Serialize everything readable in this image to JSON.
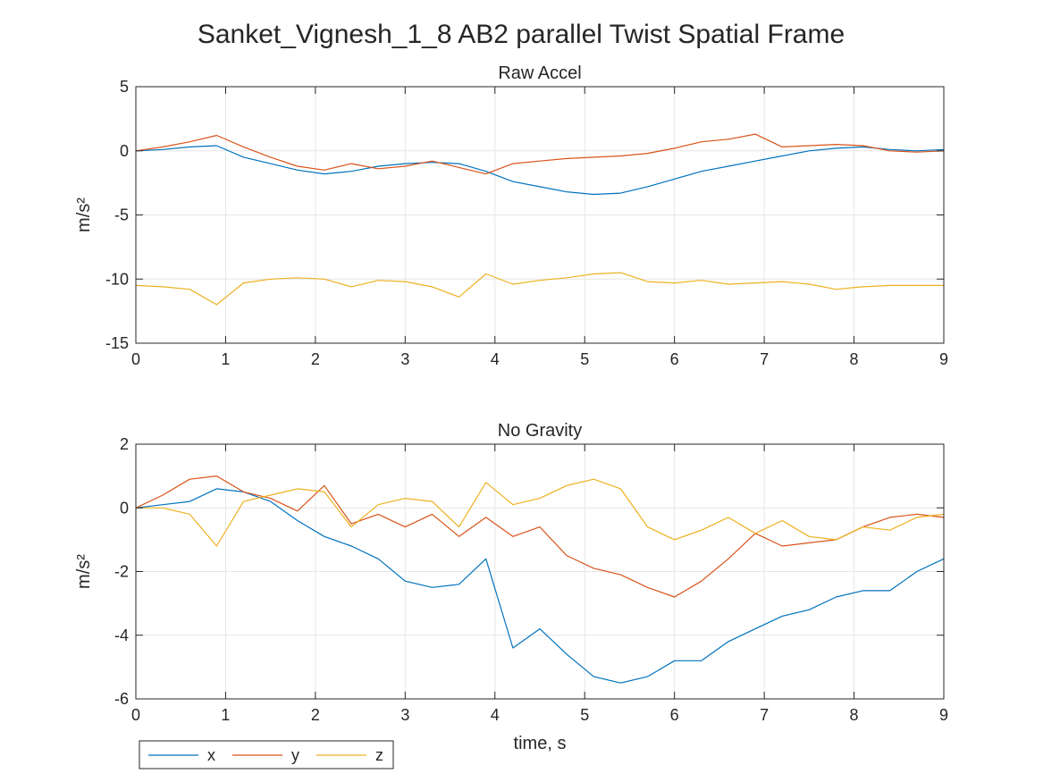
{
  "figure_title": "Sanket_Vignesh_1_8 AB2 parallel Twist Spatial Frame",
  "colors": {
    "x": "#0072BD",
    "y": "#D95319",
    "z": "#EDB120",
    "grid": "#E6E6E6",
    "axis": "#262626"
  },
  "legend": {
    "placement": "bottom-left",
    "orientation": "horizontal",
    "entries": [
      "x",
      "y",
      "z"
    ]
  },
  "chart_data": [
    {
      "type": "line",
      "title": "Raw Accel",
      "xlabel": "",
      "ylabel": "m/s²",
      "xlim": [
        0,
        9
      ],
      "ylim": [
        -15,
        5
      ],
      "xticks": [
        0,
        1,
        2,
        3,
        4,
        5,
        6,
        7,
        8,
        9
      ],
      "yticks": [
        5,
        0,
        -5,
        -10,
        -15
      ],
      "grid": true,
      "series": [
        {
          "name": "x",
          "x": [
            0,
            0.3,
            0.6,
            0.9,
            1.2,
            1.5,
            1.8,
            2.1,
            2.4,
            2.7,
            3.0,
            3.3,
            3.6,
            3.9,
            4.2,
            4.5,
            4.8,
            5.1,
            5.4,
            5.7,
            6.0,
            6.3,
            6.6,
            6.9,
            7.2,
            7.5,
            7.8,
            8.1,
            8.4,
            8.7,
            9.0
          ],
          "y": [
            0,
            0.1,
            0.3,
            0.4,
            -0.5,
            -1.0,
            -1.5,
            -1.8,
            -1.6,
            -1.2,
            -1.0,
            -0.9,
            -1.0,
            -1.6,
            -2.4,
            -2.8,
            -3.2,
            -3.4,
            -3.3,
            -2.8,
            -2.2,
            -1.6,
            -1.2,
            -0.8,
            -0.4,
            0,
            0.2,
            0.3,
            0.1,
            0,
            0.1
          ]
        },
        {
          "name": "y",
          "x": [
            0,
            0.3,
            0.6,
            0.9,
            1.2,
            1.5,
            1.8,
            2.1,
            2.4,
            2.7,
            3.0,
            3.3,
            3.6,
            3.9,
            4.2,
            4.5,
            4.8,
            5.1,
            5.4,
            5.7,
            6.0,
            6.3,
            6.6,
            6.9,
            7.2,
            7.5,
            7.8,
            8.1,
            8.4,
            8.7,
            9.0
          ],
          "y": [
            0,
            0.3,
            0.7,
            1.2,
            0.3,
            -0.5,
            -1.2,
            -1.5,
            -1.0,
            -1.4,
            -1.2,
            -0.8,
            -1.3,
            -1.8,
            -1.0,
            -0.8,
            -0.6,
            -0.5,
            -0.4,
            -0.2,
            0.2,
            0.7,
            0.9,
            1.3,
            0.3,
            0.4,
            0.5,
            0.4,
            0,
            -0.1,
            0
          ]
        },
        {
          "name": "z",
          "x": [
            0,
            0.3,
            0.6,
            0.9,
            1.2,
            1.5,
            1.8,
            2.1,
            2.4,
            2.7,
            3.0,
            3.3,
            3.6,
            3.9,
            4.2,
            4.5,
            4.8,
            5.1,
            5.4,
            5.7,
            6.0,
            6.3,
            6.6,
            6.9,
            7.2,
            7.5,
            7.8,
            8.1,
            8.4,
            8.7,
            9.0
          ],
          "y": [
            -10.5,
            -10.6,
            -10.8,
            -12.0,
            -10.3,
            -10.0,
            -9.9,
            -10.0,
            -10.6,
            -10.1,
            -10.2,
            -10.6,
            -11.4,
            -9.6,
            -10.4,
            -10.1,
            -9.9,
            -9.6,
            -9.5,
            -10.2,
            -10.3,
            -10.1,
            -10.4,
            -10.3,
            -10.2,
            -10.4,
            -10.8,
            -10.6,
            -10.5,
            -10.5,
            -10.5
          ]
        }
      ]
    },
    {
      "type": "line",
      "title": "No Gravity",
      "xlabel": "time, s",
      "ylabel": "m/s²",
      "xlim": [
        0,
        9
      ],
      "ylim": [
        -6,
        2
      ],
      "xticks": [
        0,
        1,
        2,
        3,
        4,
        5,
        6,
        7,
        8,
        9
      ],
      "yticks": [
        2,
        0,
        -2,
        -4,
        -6
      ],
      "grid": true,
      "series": [
        {
          "name": "x",
          "x": [
            0,
            0.3,
            0.6,
            0.9,
            1.2,
            1.5,
            1.8,
            2.1,
            2.4,
            2.7,
            3.0,
            3.3,
            3.6,
            3.9,
            4.2,
            4.5,
            4.8,
            5.1,
            5.4,
            5.7,
            6.0,
            6.3,
            6.6,
            6.9,
            7.2,
            7.5,
            7.8,
            8.1,
            8.4,
            8.7,
            9.0
          ],
          "y": [
            0,
            0.1,
            0.2,
            0.6,
            0.5,
            0.2,
            -0.4,
            -0.9,
            -1.2,
            -1.6,
            -2.3,
            -2.5,
            -2.4,
            -1.6,
            -4.4,
            -3.8,
            -4.6,
            -5.3,
            -5.5,
            -5.3,
            -4.8,
            -4.8,
            -4.2,
            -3.8,
            -3.4,
            -3.2,
            -2.8,
            -2.6,
            -2.6,
            -2.0,
            -1.6
          ]
        },
        {
          "name": "y",
          "x": [
            0,
            0.3,
            0.6,
            0.9,
            1.2,
            1.5,
            1.8,
            2.1,
            2.4,
            2.7,
            3.0,
            3.3,
            3.6,
            3.9,
            4.2,
            4.5,
            4.8,
            5.1,
            5.4,
            5.7,
            6.0,
            6.3,
            6.6,
            6.9,
            7.2,
            7.5,
            7.8,
            8.1,
            8.4,
            8.7,
            9.0
          ],
          "y": [
            0,
            0.4,
            0.9,
            1.0,
            0.5,
            0.3,
            -0.1,
            0.7,
            -0.5,
            -0.2,
            -0.6,
            -0.2,
            -0.9,
            -0.3,
            -0.9,
            -0.6,
            -1.5,
            -1.9,
            -2.1,
            -2.5,
            -2.8,
            -2.3,
            -1.6,
            -0.8,
            -1.2,
            -1.1,
            -1.0,
            -0.6,
            -0.3,
            -0.2,
            -0.3
          ]
        },
        {
          "name": "z",
          "x": [
            0,
            0.3,
            0.6,
            0.9,
            1.2,
            1.5,
            1.8,
            2.1,
            2.4,
            2.7,
            3.0,
            3.3,
            3.6,
            3.9,
            4.2,
            4.5,
            4.8,
            5.1,
            5.4,
            5.7,
            6.0,
            6.3,
            6.6,
            6.9,
            7.2,
            7.5,
            7.8,
            8.1,
            8.4,
            8.7,
            9.0
          ],
          "y": [
            0,
            0,
            -0.2,
            -1.2,
            0.2,
            0.4,
            0.6,
            0.5,
            -0.6,
            0.1,
            0.3,
            0.2,
            -0.6,
            0.8,
            0.1,
            0.3,
            0.7,
            0.9,
            0.6,
            -0.6,
            -1.0,
            -0.7,
            -0.3,
            -0.8,
            -0.4,
            -0.9,
            -1.0,
            -0.6,
            -0.7,
            -0.3,
            -0.2
          ]
        }
      ]
    }
  ]
}
